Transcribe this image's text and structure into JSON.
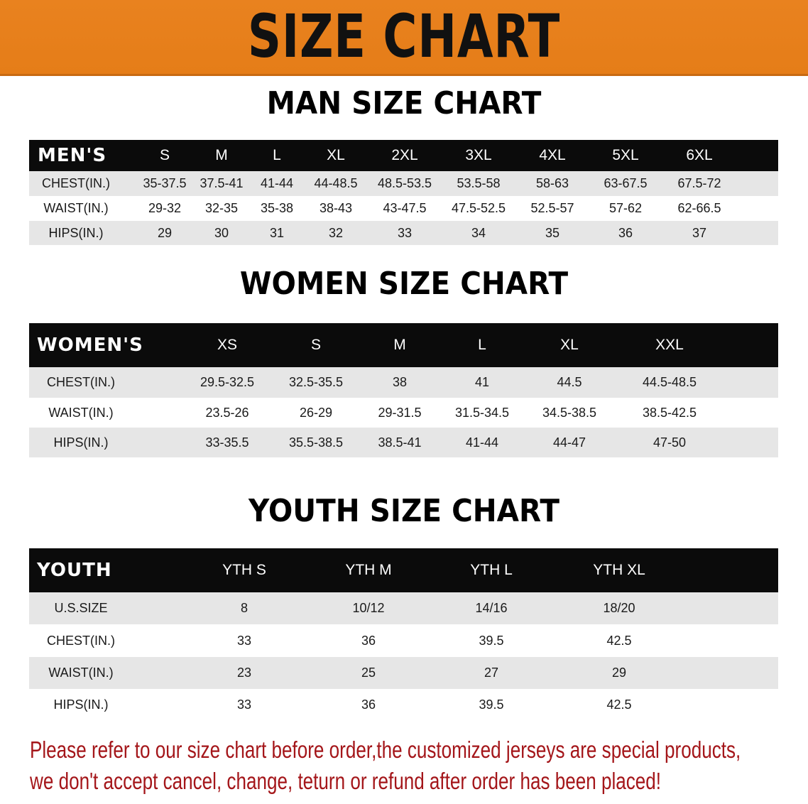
{
  "banner": {
    "title": "SIZE CHART",
    "color": "#e9821f"
  },
  "men": {
    "title": "MAN SIZE CHART",
    "header": [
      "MEN'S",
      "S",
      "M",
      "L",
      "XL",
      "2XL",
      "3XL",
      "4XL",
      "5XL",
      "6XL"
    ],
    "rows": [
      [
        "CHEST(IN.)",
        "35-37.5",
        "37.5-41",
        "41-44",
        "44-48.5",
        "48.5-53.5",
        "53.5-58",
        "58-63",
        "63-67.5",
        "67.5-72"
      ],
      [
        "WAIST(IN.)",
        "29-32",
        "32-35",
        "35-38",
        "38-43",
        "43-47.5",
        "47.5-52.5",
        "52.5-57",
        "57-62",
        "62-66.5"
      ],
      [
        "HIPS(IN.)",
        "29",
        "30",
        "31",
        "32",
        "33",
        "34",
        "35",
        "36",
        "37"
      ]
    ]
  },
  "women": {
    "title": "WOMEN SIZE CHART",
    "header": [
      "WOMEN'S",
      "XS",
      "S",
      "M",
      "L",
      "XL",
      "XXL"
    ],
    "rows": [
      [
        "CHEST(IN.)",
        "29.5-32.5",
        "32.5-35.5",
        "38",
        "41",
        "44.5",
        "44.5-48.5"
      ],
      [
        "WAIST(IN.)",
        "23.5-26",
        "26-29",
        "29-31.5",
        "31.5-34.5",
        "34.5-38.5",
        "38.5-42.5"
      ],
      [
        "HIPS(IN.)",
        "33-35.5",
        "35.5-38.5",
        "38.5-41",
        "41-44",
        "44-47",
        "47-50"
      ]
    ]
  },
  "youth": {
    "title": "YOUTH SIZE CHART",
    "header": [
      "YOUTH",
      "YTH S",
      "YTH M",
      "YTH L",
      "YTH XL"
    ],
    "rows": [
      [
        "U.S.SIZE",
        "8",
        "10/12",
        "14/16",
        "18/20"
      ],
      [
        "CHEST(IN.)",
        "33",
        "36",
        "39.5",
        "42.5"
      ],
      [
        "WAIST(IN.)",
        "23",
        "25",
        "27",
        "29"
      ],
      [
        "HIPS(IN.)",
        "33",
        "36",
        "39.5",
        "42.5"
      ]
    ]
  },
  "note": {
    "line1": "Please refer to our size chart before order,the customized jerseys are special products,",
    "line2": "we don't accept cancel, change, teturn or refund after order has been placed!",
    "color": "#a4161a"
  }
}
